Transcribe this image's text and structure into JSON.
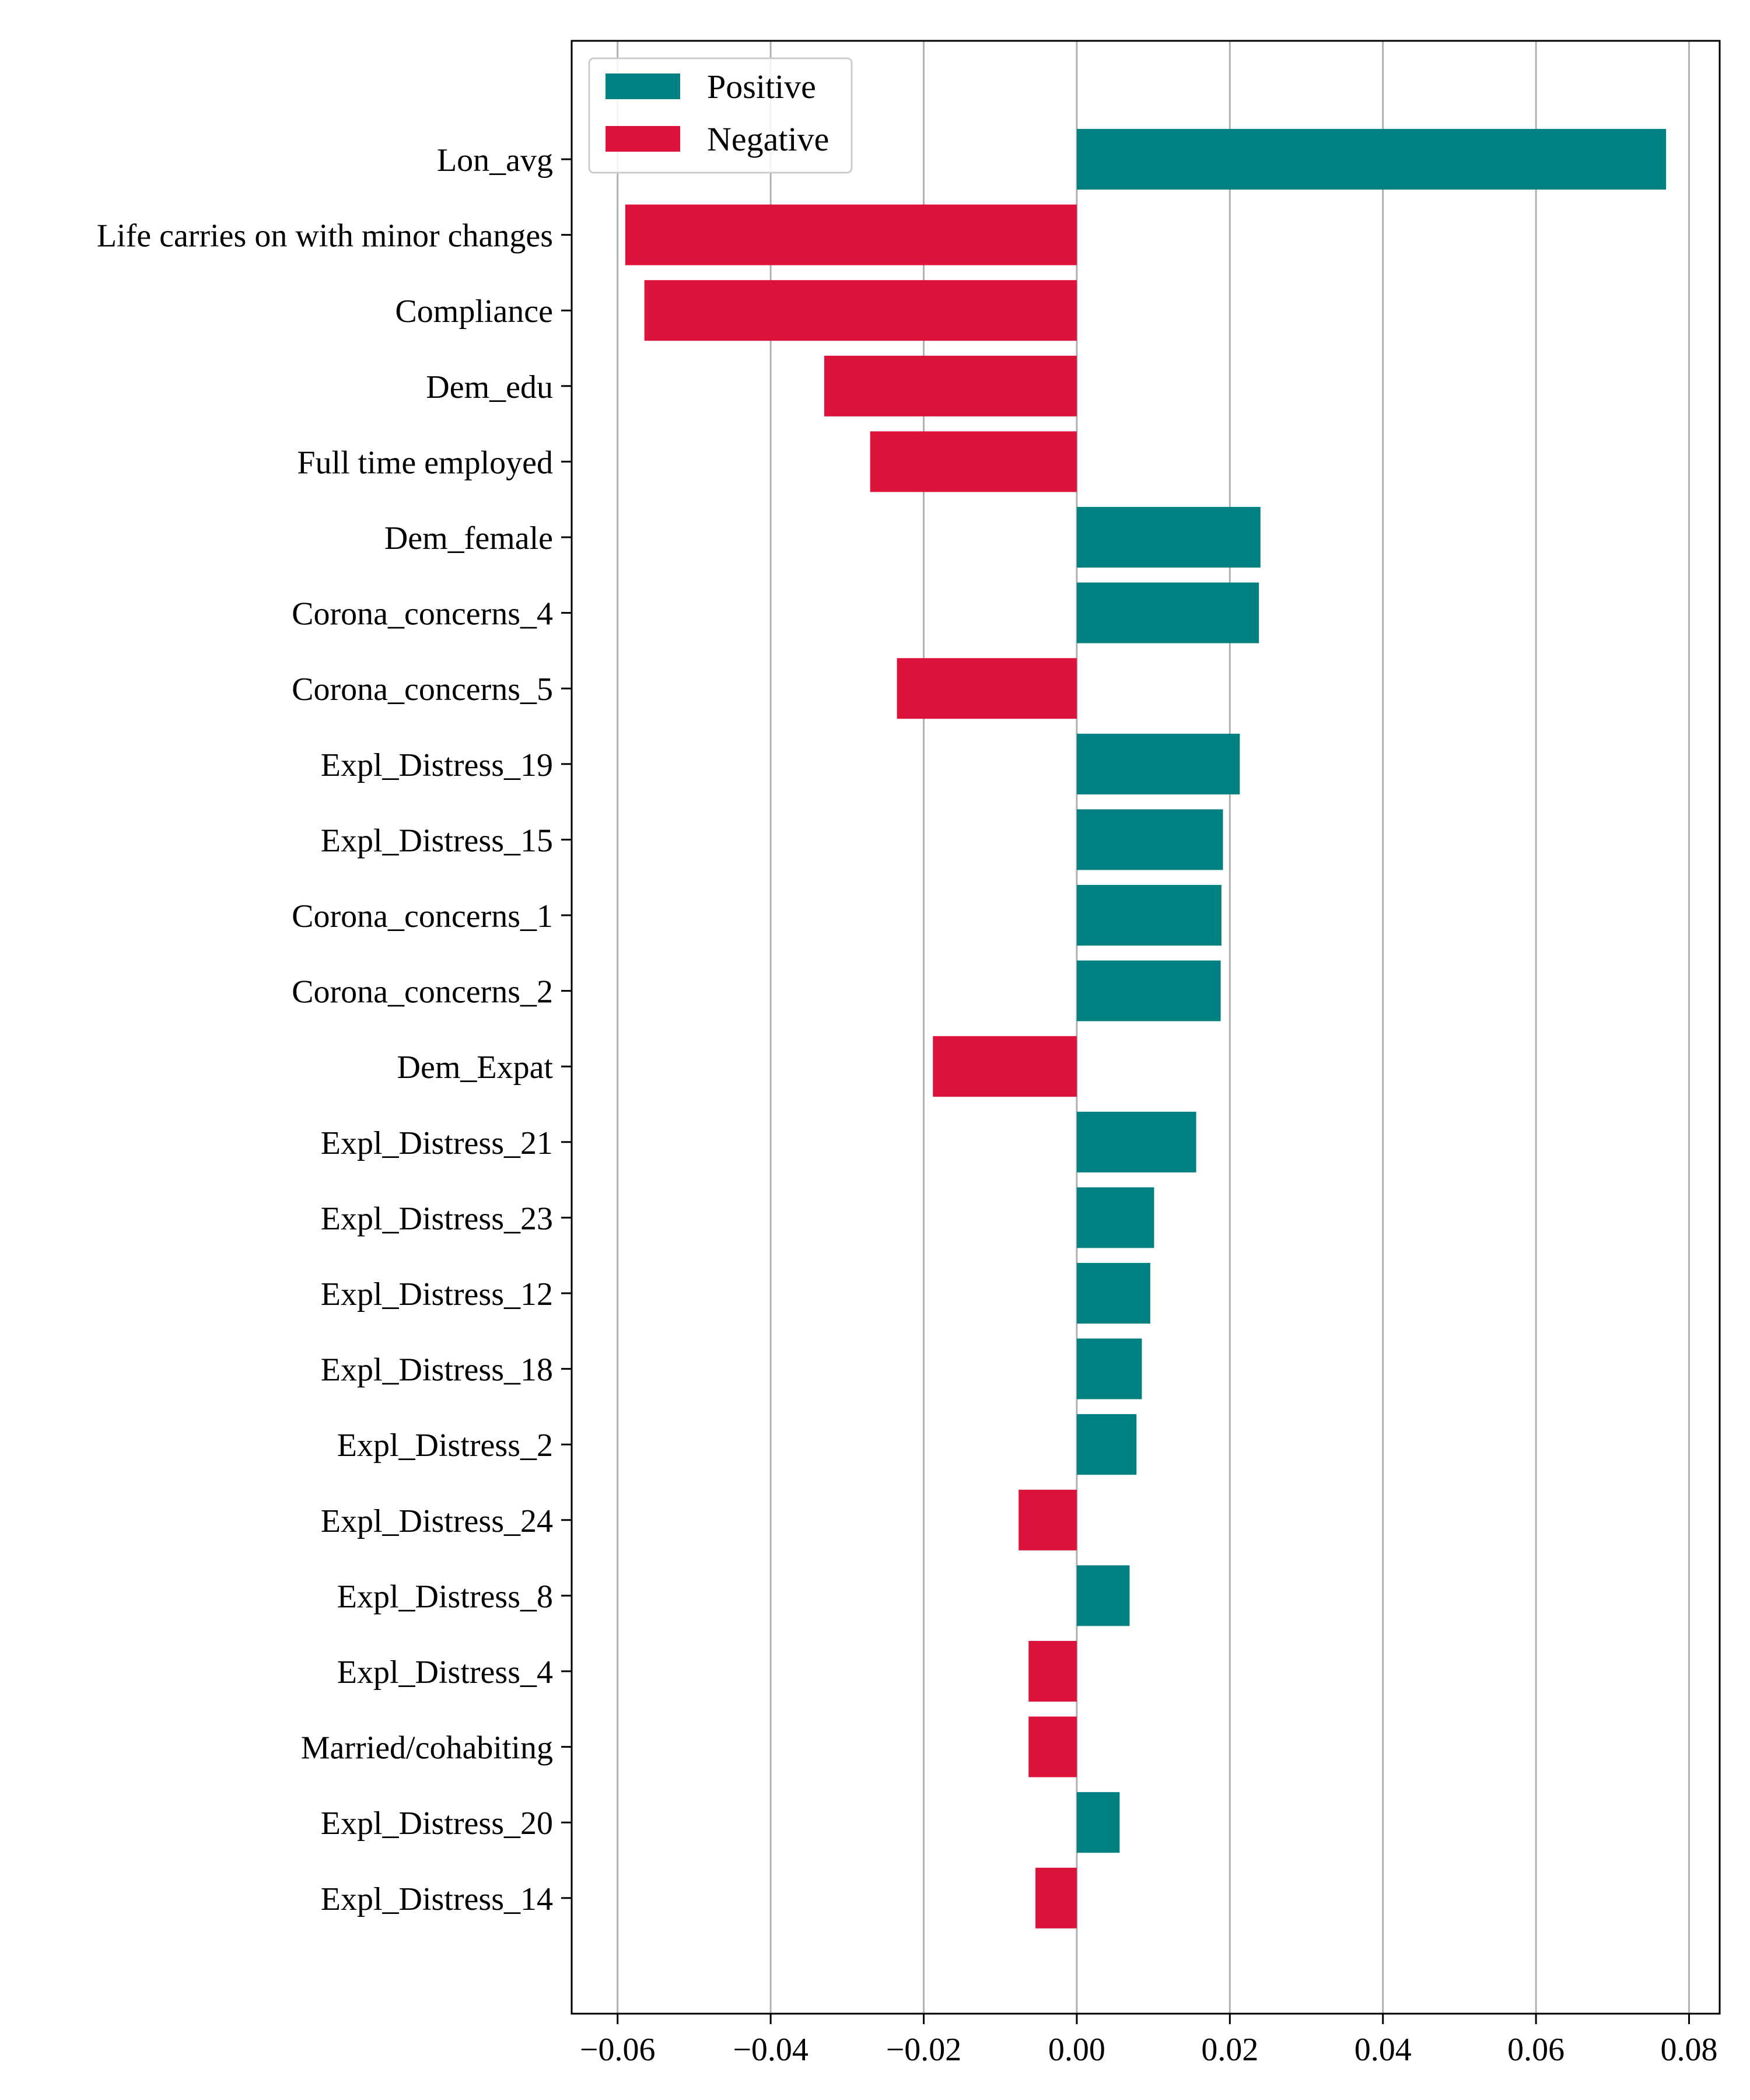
{
  "chart_data": {
    "type": "bar",
    "orientation": "horizontal",
    "title": "",
    "xlabel": "",
    "ylabel": "",
    "xlim": [
      -0.066,
      0.084
    ],
    "xticks": [
      -0.06,
      -0.04,
      -0.02,
      0.0,
      0.02,
      0.04,
      0.06,
      0.08
    ],
    "xtick_labels": [
      "−0.06",
      "−0.04",
      "−0.02",
      "0.00",
      "0.02",
      "0.04",
      "0.06",
      "0.08"
    ],
    "grid": {
      "x": true,
      "y": false
    },
    "legend": {
      "placement": "top-left",
      "entries": [
        {
          "label": "Positive",
          "color": "#008080"
        },
        {
          "label": "Negative",
          "color": "#DC143C"
        }
      ]
    },
    "colors": {
      "positive": "#008080",
      "negative": "#DC143C",
      "grid": "#b0b0b0",
      "axis": "#000000"
    },
    "categories": [
      "Lon_avg",
      "Life carries on with minor changes",
      "Compliance",
      "Dem_edu",
      "Full time employed",
      "Dem_female",
      "Corona_concerns_4",
      "Corona_concerns_5",
      "Expl_Distress_19",
      "Expl_Distress_15",
      "Corona_concerns_1",
      "Corona_concerns_2",
      "Dem_Expat",
      "Expl_Distress_21",
      "Expl_Distress_23",
      "Expl_Distress_12",
      "Expl_Distress_18",
      "Expl_Distress_2",
      "Expl_Distress_24",
      "Expl_Distress_8",
      "Expl_Distress_4",
      "Married/cohabiting",
      "Expl_Distress_20",
      "Expl_Distress_14"
    ],
    "values": [
      0.077,
      -0.059,
      -0.0565,
      -0.033,
      -0.027,
      0.024,
      0.0238,
      -0.0235,
      0.0213,
      0.0191,
      0.0189,
      0.0188,
      -0.0188,
      0.0156,
      0.0101,
      0.0096,
      0.0085,
      0.0078,
      -0.0076,
      0.0069,
      -0.0063,
      -0.0063,
      0.0056,
      -0.0054
    ]
  }
}
